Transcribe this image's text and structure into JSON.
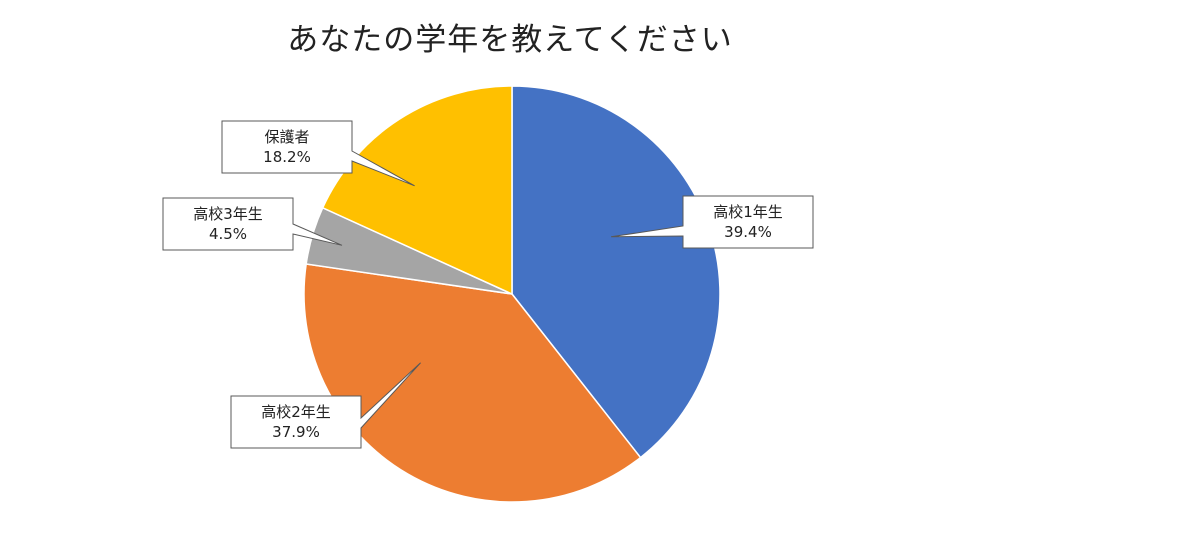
{
  "chart_data": {
    "type": "pie",
    "title": "あなたの学年を教えてください",
    "start_angle_deg": 0,
    "direction": "clockwise",
    "slices": [
      {
        "label": "高校1年生",
        "value": 39.4,
        "value_label": "39.4%",
        "color": "#4472C4"
      },
      {
        "label": "高校2年生",
        "value": 37.9,
        "value_label": "37.9%",
        "color": "#ED7D31"
      },
      {
        "label": "高校3年生",
        "value": 4.5,
        "value_label": "4.5%",
        "color": "#A5A5A5"
      },
      {
        "label": "保護者",
        "value": 18.2,
        "value_label": "18.2%",
        "color": "#FFC000"
      }
    ]
  }
}
